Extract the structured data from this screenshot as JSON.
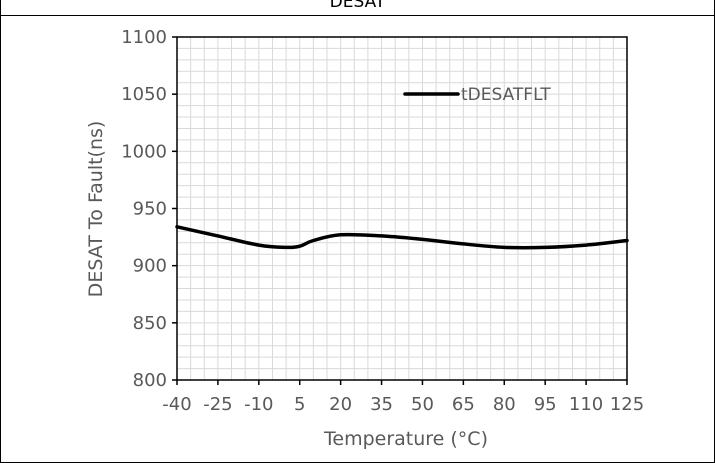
{
  "header": {
    "caption_partial": "DESAT"
  },
  "chart_data": {
    "type": "line",
    "title": "",
    "xlabel": "Temperature (°C)",
    "ylabel": "DESAT To Fault(ns)",
    "x_ticks": [
      "-40",
      "-25",
      "-10",
      "5",
      "20",
      "35",
      "50",
      "65",
      "80",
      "95",
      "110",
      "125"
    ],
    "y_ticks": [
      "800",
      "850",
      "900",
      "950",
      "1000",
      "1050",
      "1100"
    ],
    "xlim": [
      -40,
      125
    ],
    "ylim": [
      800,
      1100
    ],
    "grid": true,
    "legend_position": "top-right",
    "series": [
      {
        "name": "tDESATFLT",
        "color": "#000000",
        "x": [
          -40,
          -25,
          -10,
          0,
          5,
          10,
          20,
          35,
          50,
          65,
          80,
          95,
          110,
          125
        ],
        "values": [
          934,
          926,
          918,
          916,
          917,
          922,
          927,
          926,
          923,
          919,
          916,
          916,
          918,
          922
        ]
      }
    ]
  }
}
